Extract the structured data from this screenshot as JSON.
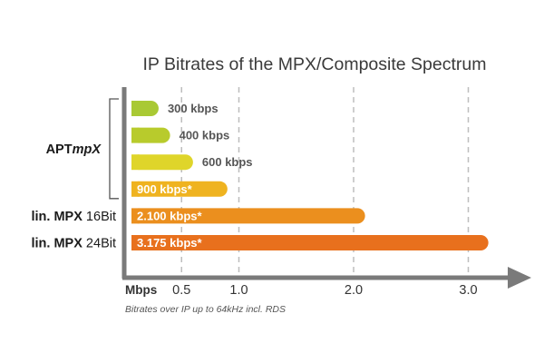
{
  "chart_data": {
    "type": "bar",
    "orientation": "horizontal",
    "title": "IP Bitrates of the MPX/Composite Spectrum",
    "xlabel": "Mbps",
    "xlim": [
      0,
      3.4
    ],
    "x_ticks": [
      "0.5",
      "1.0",
      "2.0",
      "3.0"
    ],
    "x_tick_values": [
      0.5,
      1.0,
      2.0,
      3.0
    ],
    "grid": "vertical-dashed",
    "footnote": "Bitrates over IP   up to 64kHz incl. RDS",
    "bars": [
      {
        "label": "300 kbps",
        "value": 0.3,
        "color": "#a9c934",
        "label_position": "outside"
      },
      {
        "label": "400 kbps",
        "value": 0.4,
        "color": "#b8cb2c",
        "label_position": "outside"
      },
      {
        "label": "600 kbps",
        "value": 0.6,
        "color": "#dfd52a",
        "label_position": "outside"
      },
      {
        "label": "900 kbps*",
        "value": 0.9,
        "color": "#efb320",
        "label_position": "inside"
      },
      {
        "label": "2.100 kbps*",
        "value": 2.1,
        "color": "#eb8f1e",
        "label_position": "inside"
      },
      {
        "label": "3.175 kbps*",
        "value": 3.175,
        "color": "#e8701d",
        "label_position": "inside"
      }
    ],
    "groups": [
      {
        "name_plain": "APT",
        "name_italic": "mpX",
        "bars": [
          0,
          1,
          2,
          3
        ]
      },
      {
        "name_bold": "lin. MPX",
        "name_plain": " 16Bit",
        "bars": [
          4
        ]
      },
      {
        "name_bold": "lin. MPX",
        "name_plain": " 24Bit",
        "bars": [
          5
        ]
      }
    ]
  },
  "colors": {
    "axis": "#7a7a7a",
    "grid": "#bdbdbd",
    "outside_label": "#555555",
    "inside_label": "#ffffff"
  }
}
